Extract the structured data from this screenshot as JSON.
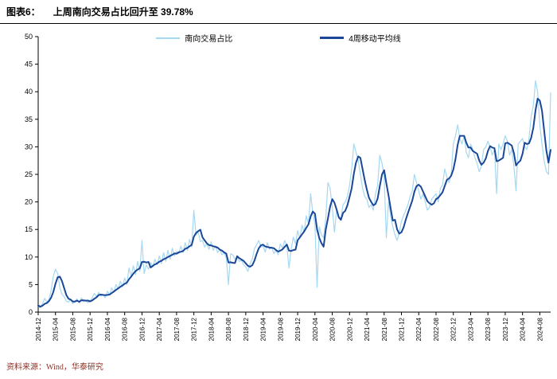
{
  "header": {
    "prefix": "图表6：",
    "title": "上周南向交易占比回升至 39.78%"
  },
  "legend": [
    {
      "label": "南向交易占比",
      "color": "#A5D8F2"
    },
    {
      "label": "4周移动平均线",
      "color": "#1B4798"
    }
  ],
  "source": "资料来源：Wind，华泰研究",
  "colors": {
    "series_light": "#A5D8F2",
    "series_dark": "#1B4798",
    "source_text": "#8B3124",
    "axis": "#000000"
  },
  "chart_data": {
    "type": "line",
    "title": "上周南向交易占比回升至 39.78%",
    "ylabel": "",
    "xlabel": "",
    "ylim": [
      0,
      50
    ],
    "grid": false,
    "legend_position": "top-center",
    "y_ticks": [
      0,
      5,
      10,
      15,
      20,
      25,
      30,
      35,
      40,
      45,
      50
    ],
    "x_tick_labels": [
      "2014-12",
      "2015-04",
      "2015-08",
      "2015-12",
      "2016-04",
      "2016-08",
      "2016-12",
      "2017-04",
      "2017-08",
      "2017-12",
      "2018-04",
      "2018-08",
      "2018-12",
      "2019-04",
      "2019-08",
      "2019-12",
      "2020-04",
      "2020-08",
      "2020-12",
      "2021-04",
      "2021-08",
      "2021-12",
      "2022-04",
      "2022-08",
      "2022-12",
      "2023-04",
      "2023-08",
      "2023-12",
      "2024-04",
      "2024-08"
    ],
    "points_per_tick_interval": 8,
    "x_start": "2014-12",
    "x_end": "2024-10",
    "last_value": 39.78,
    "series": [
      {
        "name": "南向交易占比",
        "color": "#A5D8F2",
        "values": [
          1.2,
          0.8,
          1.5,
          2.5,
          1.8,
          2.3,
          4.0,
          6.5,
          7.8,
          7.0,
          4.5,
          3.2,
          2.8,
          2.0,
          1.8,
          2.4,
          1.5,
          2.0,
          2.4,
          1.6,
          2.6,
          1.9,
          2.2,
          1.7,
          2.0,
          2.6,
          3.4,
          2.8,
          3.6,
          2.9,
          3.2,
          2.6,
          3.8,
          3.1,
          4.4,
          3.6,
          5.0,
          4.2,
          5.6,
          4.6,
          6.2,
          5.0,
          8.0,
          6.5,
          8.4,
          6.8,
          9.2,
          7.4,
          13.0,
          7.0,
          8.6,
          7.8,
          9.0,
          8.2,
          9.6,
          8.6,
          10.2,
          8.8,
          10.8,
          9.2,
          11.2,
          9.6,
          11.6,
          10.2,
          11.0,
          10.6,
          12.0,
          10.8,
          12.6,
          11.2,
          13.2,
          11.8,
          18.5,
          14.0,
          14.5,
          12.8,
          13.0,
          11.8,
          12.4,
          11.4,
          12.8,
          11.2,
          12.0,
          10.8,
          11.4,
          10.4,
          10.8,
          9.8,
          5.0,
          10.6,
          10.4,
          9.6,
          10.0,
          9.2,
          9.4,
          8.6,
          8.2,
          7.4,
          8.8,
          9.6,
          11.5,
          12.2,
          13.0,
          11.8,
          12.0,
          10.9,
          12.6,
          11.4,
          11.8,
          10.6,
          11.2,
          10.4,
          12.4,
          11.6,
          13.0,
          12.0,
          8.0,
          11.4,
          13.6,
          12.4,
          14.8,
          13.4,
          15.8,
          14.5,
          17.5,
          16.0,
          21.5,
          18.0,
          16.0,
          4.5,
          15.5,
          14.0,
          13.5,
          17.0,
          23.5,
          22.5,
          19.0,
          14.5,
          18.5,
          17.0,
          17.0,
          19.5,
          20.0,
          21.0,
          23.0,
          26.0,
          30.5,
          29.0,
          27.5,
          25.0,
          22.5,
          21.0,
          20.5,
          19.0,
          19.5,
          18.5,
          21.5,
          23.0,
          28.5,
          27.0,
          24.5,
          13.5,
          20.0,
          17.5,
          15.5,
          14.0,
          13.0,
          14.5,
          16.5,
          17.5,
          18.5,
          19.5,
          21.0,
          22.0,
          25.0,
          23.5,
          22.0,
          20.5,
          21.5,
          20.0,
          18.5,
          19.0,
          20.5,
          21.0,
          21.5,
          20.0,
          22.5,
          23.0,
          26.0,
          24.5,
          23.5,
          25.0,
          30.5,
          32.0,
          34.0,
          31.5,
          30.5,
          32.0,
          29.0,
          28.0,
          30.5,
          29.5,
          28.0,
          27.0,
          25.5,
          26.5,
          29.5,
          30.0,
          31.0,
          30.0,
          28.5,
          29.5,
          21.5,
          30.5,
          29.5,
          30.5,
          32.0,
          31.0,
          28.5,
          29.5,
          26.5,
          22.0,
          30.5,
          31.0,
          31.5,
          30.0,
          29.5,
          31.5,
          35.5,
          37.5,
          42.0,
          40.0,
          34.0,
          30.5,
          27.5,
          25.5,
          25.0,
          39.78
        ]
      },
      {
        "name": "4周移动平均线",
        "color": "#1B4798",
        "derived_from": "南向交易占比",
        "window_points": 4
      }
    ]
  }
}
